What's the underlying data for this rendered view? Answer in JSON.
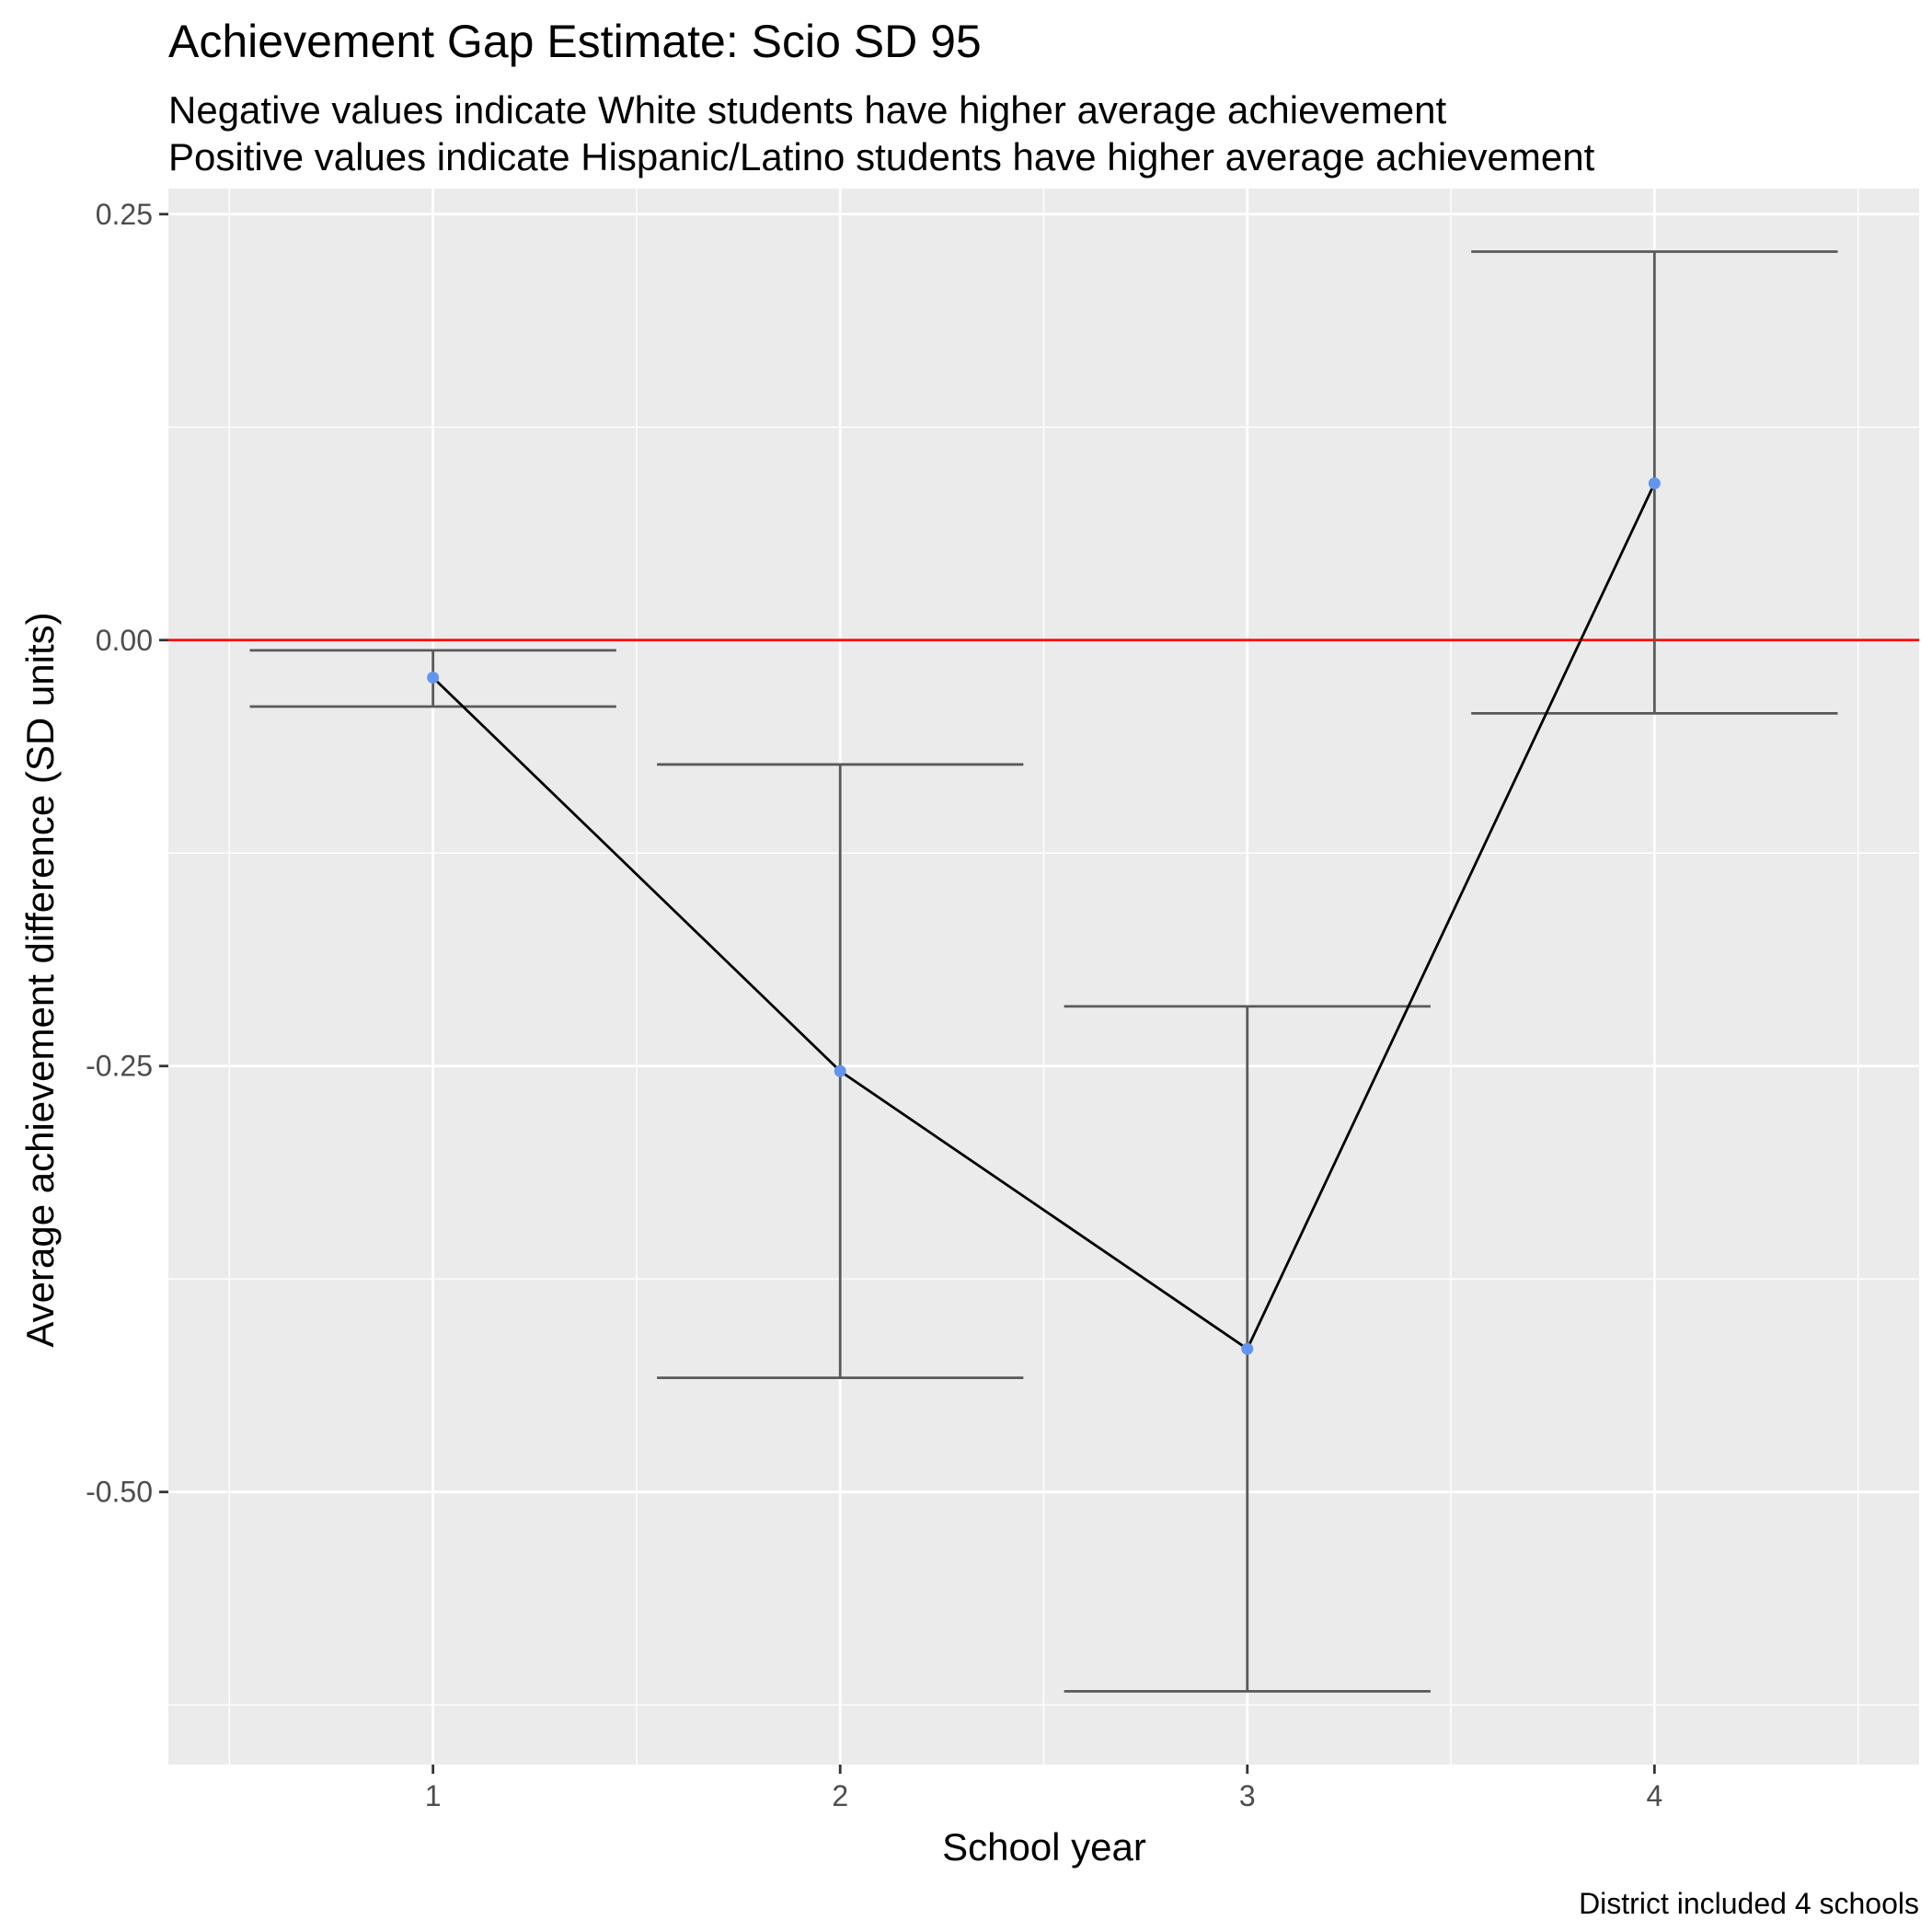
{
  "chart_data": {
    "type": "line",
    "title": "Achievement Gap Estimate: Scio SD 95",
    "subtitle_lines": [
      "Negative values indicate White students have higher average achievement",
      "Positive values indicate Hispanic/Latino students have higher average achievement"
    ],
    "xlabel": "School year",
    "ylabel": "Average achievement difference (SD units)",
    "caption": "District included 4 schools",
    "x": [
      1,
      2,
      3,
      4
    ],
    "x_tick_labels": [
      "1",
      "2",
      "3",
      "4"
    ],
    "y_ticks": [
      0.25,
      0.0,
      -0.25,
      -0.5
    ],
    "y_tick_labels": [
      "0.25",
      "0.00",
      "-0.25",
      "-0.50"
    ],
    "xlim": [
      0.35,
      4.65
    ],
    "ylim": [
      -0.66,
      0.265
    ],
    "series": [
      {
        "values": [
          -0.022,
          -0.253,
          -0.416,
          0.092
        ],
        "lower": [
          -0.039,
          -0.433,
          -0.617,
          -0.043
        ],
        "upper": [
          -0.006,
          -0.073,
          -0.215,
          0.228
        ]
      }
    ],
    "reference_line_y": 0,
    "grid": true,
    "colors": {
      "panel": "#ebebeb",
      "grid": "#ffffff",
      "point": "#6495ed",
      "line": "#000000",
      "errorbar": "#595959",
      "reference_line": "#ff0000"
    }
  }
}
